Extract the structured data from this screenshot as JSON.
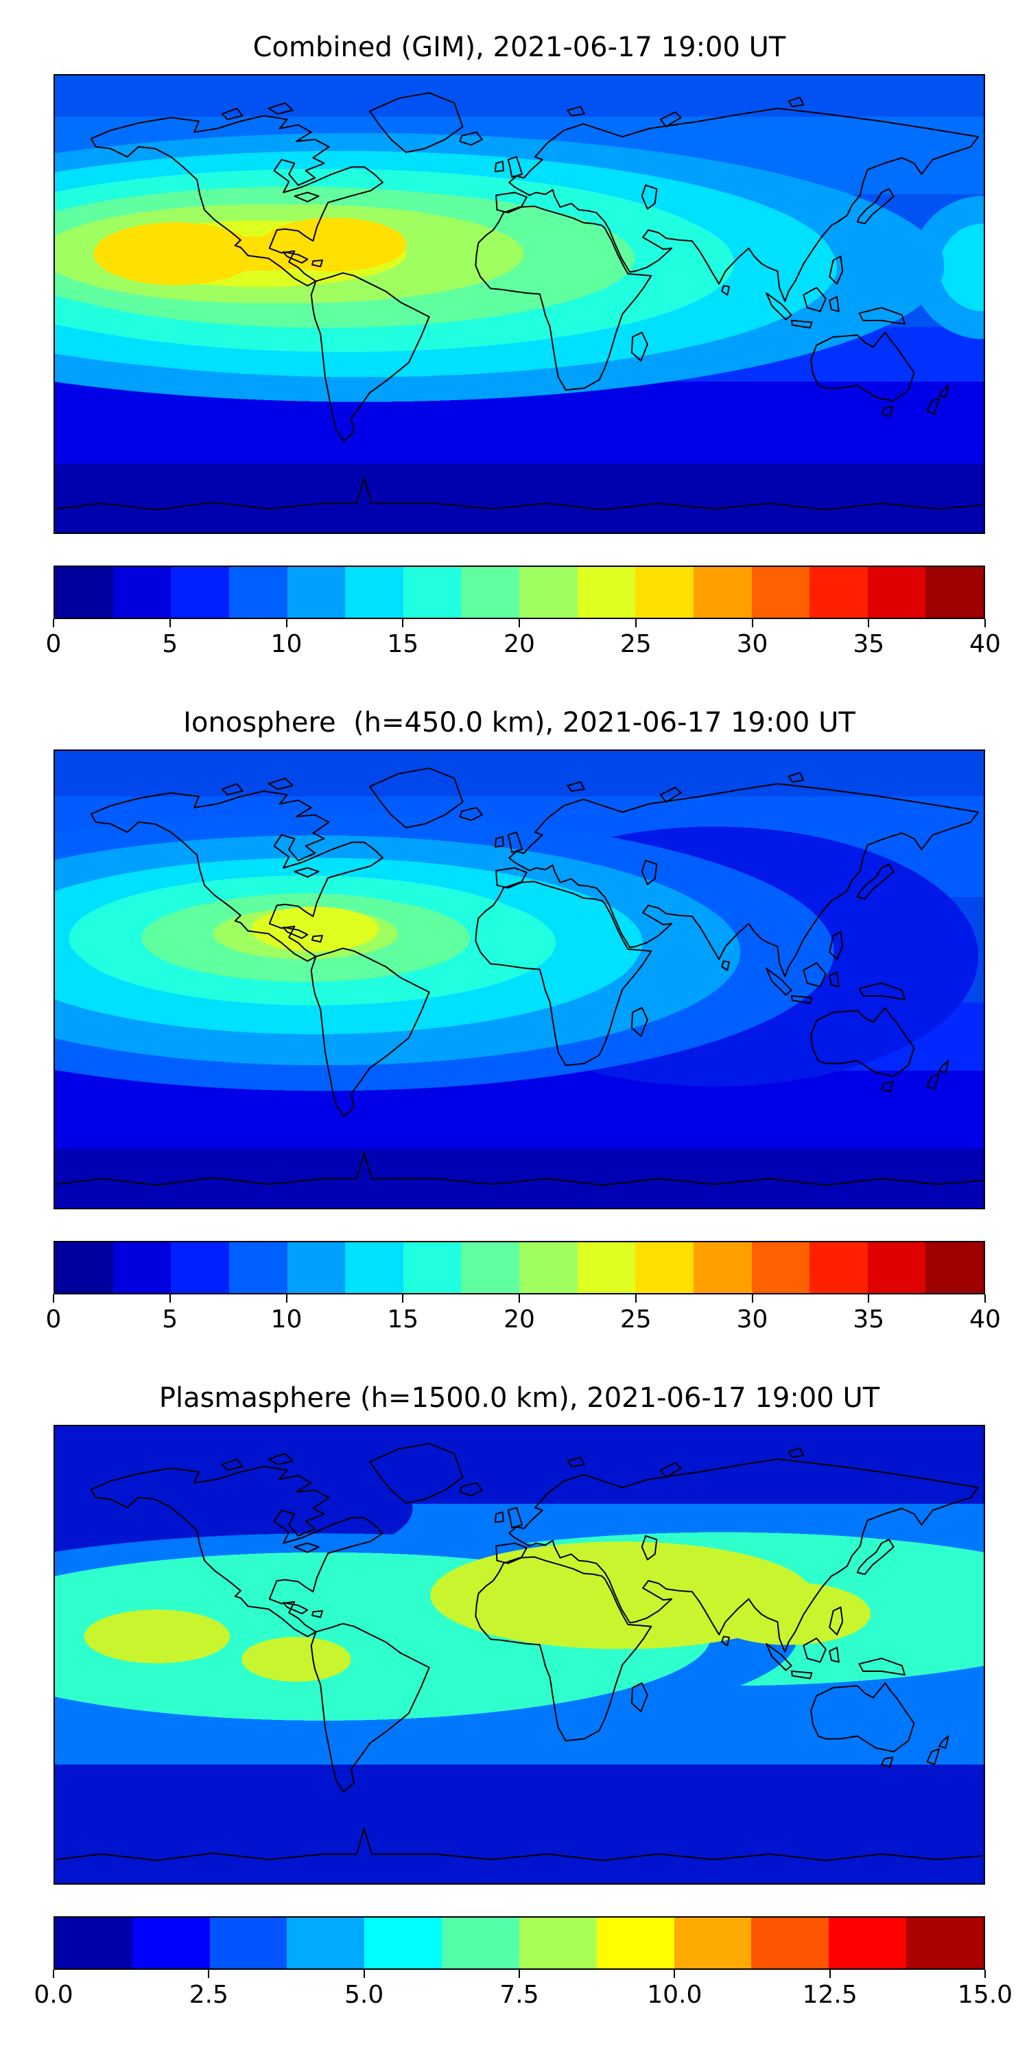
{
  "figure": {
    "colormap": "jet",
    "background": "#ffffff",
    "timestamp": "2021-06-17 19:00 UT"
  },
  "panels": [
    {
      "title": "Combined (GIM), 2021-06-17 19:00 UT",
      "colorbar": {
        "range": [
          0,
          40
        ],
        "ticks": [
          "0",
          "5",
          "10",
          "15",
          "20",
          "25",
          "30",
          "35",
          "40"
        ],
        "segments": [
          "#00009F",
          "#0000DF",
          "#0020FF",
          "#0060FF",
          "#00A0FF",
          "#00E0FF",
          "#20FFDF",
          "#60FFA0",
          "#A0FF60",
          "#DFFF20",
          "#FFE000",
          "#FFA000",
          "#FF6000",
          "#FF2000",
          "#DF0000",
          "#9F0000"
        ]
      }
    },
    {
      "title": "Ionosphere  (h=450.0 km), 2021-06-17 19:00 UT",
      "colorbar": {
        "range": [
          0,
          40
        ],
        "ticks": [
          "0",
          "5",
          "10",
          "15",
          "20",
          "25",
          "30",
          "35",
          "40"
        ],
        "segments": [
          "#00009F",
          "#0000DF",
          "#0020FF",
          "#0060FF",
          "#00A0FF",
          "#00E0FF",
          "#20FFDF",
          "#60FFA0",
          "#A0FF60",
          "#DFFF20",
          "#FFE000",
          "#FFA000",
          "#FF6000",
          "#FF2000",
          "#DF0000",
          "#9F0000"
        ]
      }
    },
    {
      "title": "Plasmasphere (h=1500.0 km), 2021-06-17 19:00 UT",
      "colorbar": {
        "range": [
          0,
          15
        ],
        "ticks": [
          "0.0",
          "2.5",
          "5.0",
          "7.5",
          "10.0",
          "12.5",
          "15.0"
        ],
        "segments": [
          "#0000AA",
          "#0000FF",
          "#0055FF",
          "#00AAFF",
          "#00FFFF",
          "#55FFAA",
          "#AAFF55",
          "#FFFF00",
          "#FFAA00",
          "#FF5500",
          "#FF0000",
          "#AA0000"
        ]
      }
    }
  ],
  "chart_data": [
    {
      "type": "heatmap",
      "title": "Combined (GIM), 2021-06-17 19:00 UT",
      "colormap": "jet",
      "projection": "equirectangular world map, lon -180..180, lat -90..90, coastlines overlaid",
      "value_range": [
        0,
        40
      ],
      "contour_step": 2.5,
      "colorbar_ticks": [
        0,
        5,
        10,
        15,
        20,
        25,
        30,
        35,
        40
      ],
      "features": [
        {
          "feature": "equatorial ionization anomaly crest, eastern Pacific",
          "lon": -135,
          "lat": 8,
          "peak_value": 27
        },
        {
          "feature": "peak over northern South America / Caribbean",
          "lon": -70,
          "lat": 10,
          "peak_value": 27
        },
        {
          "feature": "elongated enhanced band from central Pacific across Atlantic to West Africa",
          "lon_range": [
            -165,
            0
          ],
          "lat_range": [
            -5,
            22
          ],
          "value_range": [
            15,
            27
          ]
        },
        {
          "feature": "mild enhancement over maritime continent / north of Australia",
          "lon": 110,
          "lat": -5,
          "value": 13
        },
        {
          "feature": "northern mid/high latitude background",
          "value_range": [
            6,
            10
          ]
        },
        {
          "feature": "southern high latitude minimum along bottom of map",
          "value_range": [
            0,
            5
          ]
        }
      ]
    },
    {
      "type": "heatmap",
      "title": "Ionosphere  (h=450.0 km), 2021-06-17 19:00 UT",
      "colormap": "jet",
      "projection": "equirectangular world map, lon -180..180, lat -90..90, coastlines overlaid",
      "value_range": [
        0,
        40
      ],
      "contour_step": 2.5,
      "colorbar_ticks": [
        0,
        5,
        10,
        15,
        20,
        25,
        30,
        35,
        40
      ],
      "features": [
        {
          "feature": "peak over northern South America / eastern Pacific",
          "lon": -80,
          "lat": 8,
          "peak_value": 23
        },
        {
          "feature": "enhanced halo over eastern Pacific and tropical Atlantic",
          "lon_range": [
            -150,
            -20
          ],
          "lat_range": [
            -15,
            25
          ],
          "value_range": [
            10,
            20
          ]
        },
        {
          "feature": "depleted eastern hemisphere (Indian Ocean, South Asia)",
          "lon_range": [
            40,
            120
          ],
          "lat_range": [
            -30,
            30
          ],
          "value_range": [
            3,
            6
          ]
        },
        {
          "feature": "northern mid-latitude background",
          "value_range": [
            5,
            9
          ]
        },
        {
          "feature": "southern high latitude minimum along bottom of map",
          "value_range": [
            0,
            4
          ]
        }
      ]
    },
    {
      "type": "heatmap",
      "title": "Plasmasphere (h=1500.0 km), 2021-06-17 19:00 UT",
      "colormap": "jet",
      "projection": "equirectangular world map, lon -180..180, lat -90..90, coastlines overlaid",
      "value_range": [
        0,
        15
      ],
      "contour_step": 1.25,
      "colorbar_ticks": [
        0.0,
        2.5,
        5.0,
        7.5,
        10.0,
        12.5,
        15.0
      ],
      "features": [
        {
          "feature": "global low-latitude plasmaspheric band",
          "lat_range": [
            -35,
            45
          ],
          "value_range": [
            5,
            7.5
          ]
        },
        {
          "feature": "enhanced blob over North Africa / Middle East / South Asia",
          "lon_range": [
            -5,
            105
          ],
          "lat_range": [
            0,
            40
          ],
          "value_range": [
            7.5,
            10
          ]
        },
        {
          "feature": "enhanced blob over eastern Pacific",
          "lon": -145,
          "lat": 5,
          "value_range": [
            7.5,
            10
          ]
        },
        {
          "feature": "enhanced blob over northwestern South America",
          "lon": -82,
          "lat": -5,
          "value_range": [
            7.5,
            10
          ]
        },
        {
          "feature": "mid-latitude transition band",
          "value_range": [
            2.5,
            5
          ]
        },
        {
          "feature": "polar regions minimum (top and bottom of map)",
          "value_range": [
            0,
            2.5
          ]
        }
      ]
    }
  ]
}
